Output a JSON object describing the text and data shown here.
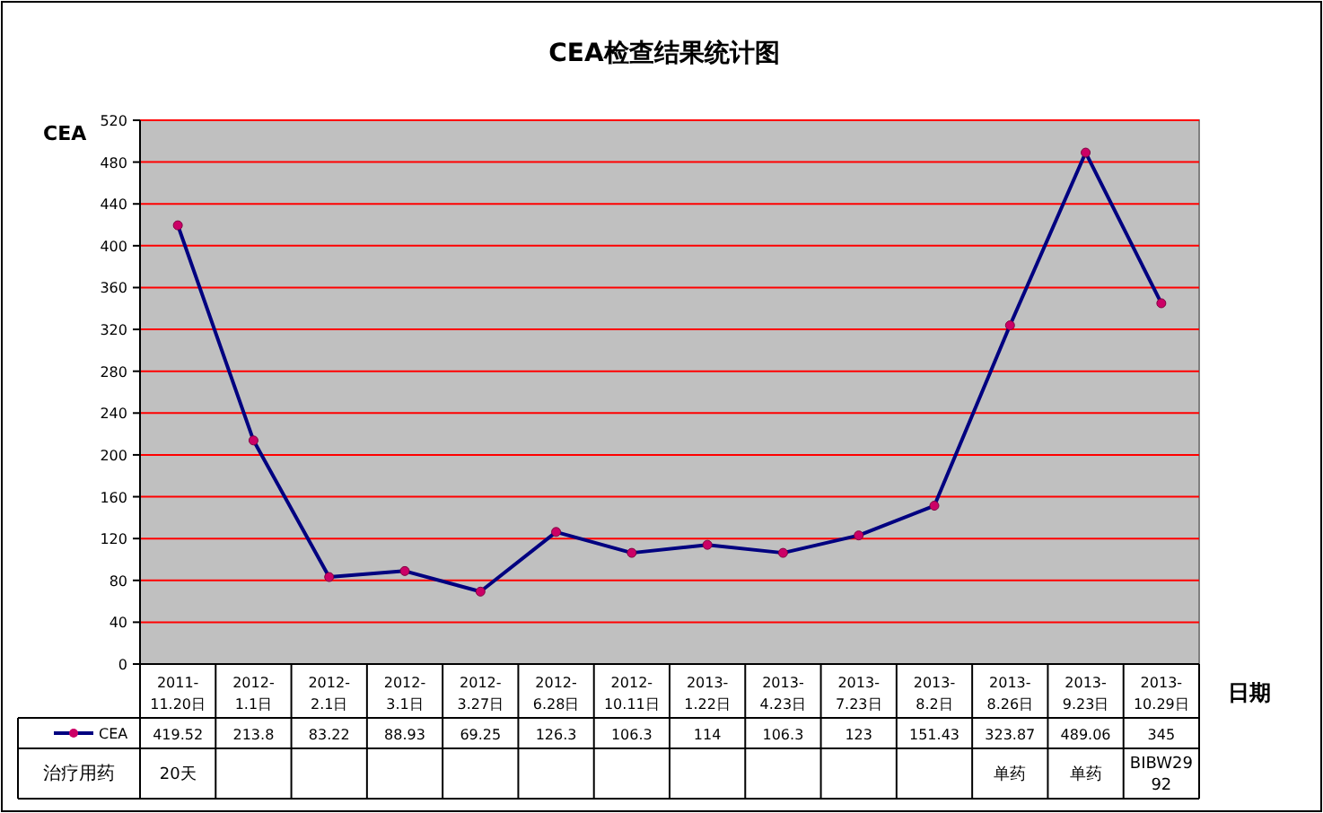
{
  "chart_data": {
    "type": "line",
    "title": "CEA检查结果统计图",
    "ylabel": "CEA",
    "xlabel": "日期",
    "categories": [
      "2011-11.20日",
      "2012-1.1日",
      "2012-2.1日",
      "2012-3.1日",
      "2012-3.27日",
      "2012-6.28日",
      "2012-10.11日",
      "2013-1.22日",
      "2013-4.23日",
      "2013-7.23日",
      "2013-8.2日",
      "2013-8.26日",
      "2013-9.23日",
      "2013-10.29日"
    ],
    "series": [
      {
        "name": "CEA",
        "color": "#000080",
        "values": [
          419.52,
          213.8,
          83.22,
          88.93,
          69.25,
          126.3,
          106.3,
          114,
          106.3,
          123,
          151.43,
          323.87,
          489.06,
          345
        ]
      }
    ],
    "ylim": [
      0,
      520
    ],
    "yticks": [
      0,
      40,
      80,
      120,
      160,
      200,
      240,
      280,
      320,
      360,
      400,
      440,
      480,
      520
    ],
    "grid": "y",
    "legend": "bottom left",
    "marker": "circle",
    "line_style": "solid",
    "data_labels": true,
    "annotations": [
      "治疗用药",
      "20天",
      "单药",
      "单药",
      "BIBW2992"
    ]
  }
}
